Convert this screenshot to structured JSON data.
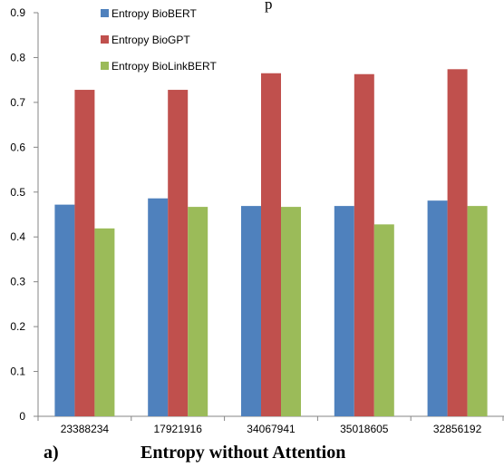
{
  "top_text": "p",
  "chart_data": {
    "type": "bar",
    "categories": [
      "23388234",
      "17921916",
      "34067941",
      "35018605",
      "32856192"
    ],
    "series": [
      {
        "name": "Entropy BioBERT",
        "color": "#4F81BD",
        "values": [
          0.472,
          0.486,
          0.469,
          0.469,
          0.481
        ]
      },
      {
        "name": "Entropy BioGPT",
        "color": "#C0504D",
        "values": [
          0.728,
          0.728,
          0.765,
          0.763,
          0.774
        ]
      },
      {
        "name": "Entropy BioLinkBERT",
        "color": "#9BBB59",
        "values": [
          0.419,
          0.467,
          0.467,
          0.428,
          0.469
        ]
      }
    ],
    "ylim": [
      0,
      0.9
    ],
    "yticks": [
      "0",
      "0.1",
      "0.2",
      "0.3",
      "0.4",
      "0.5",
      "0.6",
      "0.7",
      "0.8",
      "0.9"
    ],
    "grid": false,
    "legend": "top-left"
  },
  "caption": {
    "label": "a)",
    "title": "Entropy without Attention"
  }
}
